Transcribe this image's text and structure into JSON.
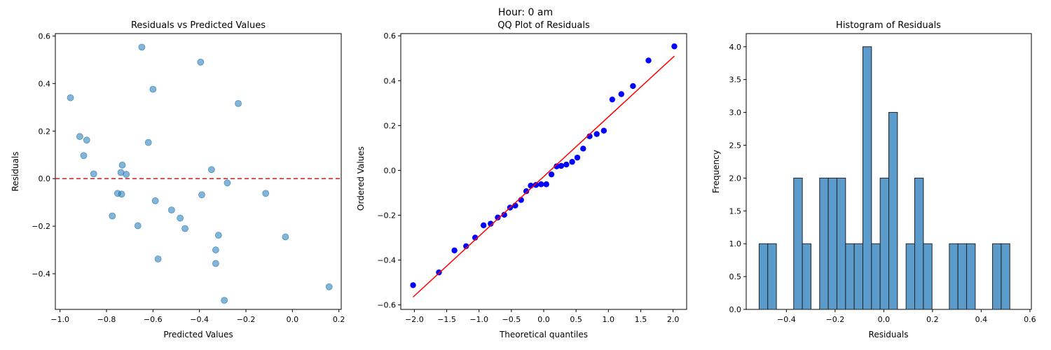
{
  "suptitle": "Hour: 0 am",
  "chart_data": [
    {
      "type": "scatter",
      "title": "Residuals vs Predicted Values",
      "xlabel": "Predicted Values",
      "ylabel": "Residuals",
      "xlim": [
        -1.02,
        0.21
      ],
      "ylim": [
        -0.55,
        0.61
      ],
      "xticks": [
        -1.0,
        -0.8,
        -0.6,
        -0.4,
        -0.2,
        0.0,
        0.2
      ],
      "xtick_labels": [
        "−1.0",
        "−0.8",
        "−0.6",
        "−0.4",
        "−0.2",
        "0.0",
        "0.2"
      ],
      "yticks": [
        -0.4,
        -0.2,
        0.0,
        0.2,
        0.4,
        0.6
      ],
      "ytick_labels": [
        "−0.4",
        "−0.2",
        "0.0",
        "0.2",
        "0.4",
        "0.6"
      ],
      "reference_line": {
        "y": 0.0,
        "color": "#d62728",
        "style": "dashed"
      },
      "point_color": "#1f77b4",
      "points": [
        [
          -0.955,
          0.34
        ],
        [
          -0.915,
          0.177
        ],
        [
          -0.885,
          0.162
        ],
        [
          -0.898,
          0.097
        ],
        [
          -0.855,
          0.02
        ],
        [
          -0.775,
          -0.157
        ],
        [
          -0.752,
          -0.062
        ],
        [
          -0.738,
          0.026
        ],
        [
          -0.735,
          -0.065
        ],
        [
          -0.732,
          0.057
        ],
        [
          -0.715,
          0.018
        ],
        [
          -0.665,
          -0.198
        ],
        [
          -0.648,
          0.553
        ],
        [
          -0.62,
          0.152
        ],
        [
          -0.6,
          0.376
        ],
        [
          -0.59,
          -0.093
        ],
        [
          -0.578,
          -0.338
        ],
        [
          -0.52,
          -0.132
        ],
        [
          -0.483,
          -0.166
        ],
        [
          -0.462,
          -0.21
        ],
        [
          -0.395,
          0.49
        ],
        [
          -0.39,
          -0.068
        ],
        [
          -0.348,
          0.038
        ],
        [
          -0.33,
          -0.3
        ],
        [
          -0.33,
          -0.357
        ],
        [
          -0.318,
          -0.238
        ],
        [
          -0.293,
          -0.512
        ],
        [
          -0.28,
          -0.018
        ],
        [
          -0.233,
          0.316
        ],
        [
          -0.115,
          -0.062
        ],
        [
          -0.03,
          -0.245
        ],
        [
          0.158,
          -0.455
        ]
      ]
    },
    {
      "type": "scatter",
      "title": "QQ Plot of Residuals",
      "xlabel": "Theoretical quantiles",
      "ylabel": "Ordered Values",
      "xlim": [
        -2.21,
        2.21
      ],
      "ylim": [
        -0.62,
        0.61
      ],
      "xticks": [
        -2.0,
        -1.5,
        -1.0,
        -0.5,
        0.0,
        0.5,
        1.0,
        1.5,
        2.0
      ],
      "xtick_labels": [
        "−2.0",
        "−1.5",
        "−1.0",
        "−0.5",
        "0.0",
        "0.5",
        "1.0",
        "1.5",
        "2.0"
      ],
      "yticks": [
        -0.6,
        -0.4,
        -0.2,
        0.0,
        0.2,
        0.4,
        0.6
      ],
      "ytick_labels": [
        "−0.6",
        "−0.4",
        "−0.2",
        "0.0",
        "0.2",
        "0.4",
        "0.6"
      ],
      "point_color": "#0000ff",
      "fit_line": {
        "x": [
          -2.02,
          2.02
        ],
        "y": [
          -0.565,
          0.51
        ],
        "color": "#ff0000"
      },
      "points": [
        [
          -2.02,
          -0.512
        ],
        [
          -1.62,
          -0.455
        ],
        [
          -1.38,
          -0.357
        ],
        [
          -1.2,
          -0.338
        ],
        [
          -1.06,
          -0.3
        ],
        [
          -0.93,
          -0.245
        ],
        [
          -0.82,
          -0.238
        ],
        [
          -0.71,
          -0.21
        ],
        [
          -0.61,
          -0.198
        ],
        [
          -0.52,
          -0.166
        ],
        [
          -0.44,
          -0.157
        ],
        [
          -0.35,
          -0.132
        ],
        [
          -0.27,
          -0.093
        ],
        [
          -0.2,
          -0.068
        ],
        [
          -0.12,
          -0.065
        ],
        [
          -0.04,
          -0.062
        ],
        [
          0.04,
          -0.062
        ],
        [
          0.12,
          -0.018
        ],
        [
          0.2,
          0.018
        ],
        [
          0.27,
          0.02
        ],
        [
          0.35,
          0.026
        ],
        [
          0.44,
          0.038
        ],
        [
          0.52,
          0.057
        ],
        [
          0.61,
          0.097
        ],
        [
          0.71,
          0.152
        ],
        [
          0.82,
          0.162
        ],
        [
          0.93,
          0.177
        ],
        [
          1.06,
          0.316
        ],
        [
          1.2,
          0.34
        ],
        [
          1.38,
          0.376
        ],
        [
          1.62,
          0.49
        ],
        [
          2.02,
          0.553
        ]
      ]
    },
    {
      "type": "bar",
      "title": "Histogram of Residuals",
      "xlabel": "Residuals",
      "ylabel": "Frequency",
      "xlim": [
        -0.565,
        0.606
      ],
      "ylim": [
        0,
        4.2
      ],
      "xticks": [
        -0.4,
        -0.2,
        0.0,
        0.2,
        0.4,
        0.6
      ],
      "xtick_labels": [
        "−0.4",
        "−0.2",
        "0.0",
        "0.2",
        "0.4",
        "0.6"
      ],
      "yticks": [
        0,
        0.5,
        1.0,
        1.5,
        2.0,
        2.5,
        3.0,
        3.5,
        4.0
      ],
      "ytick_labels": [
        "0.0",
        "0.5",
        "1.0",
        "1.5",
        "2.0",
        "2.5",
        "3.0",
        "3.5",
        "4.0"
      ],
      "bar_color": "#5b9bcb",
      "bin_start": -0.512,
      "bin_width": 0.0355,
      "counts": [
        1,
        1,
        0,
        0,
        2,
        1,
        0,
        2,
        2,
        2,
        1,
        1,
        4,
        1,
        2,
        3,
        0,
        1,
        2,
        1,
        0,
        0,
        1,
        1,
        1,
        0,
        0,
        1,
        1,
        0
      ]
    }
  ]
}
